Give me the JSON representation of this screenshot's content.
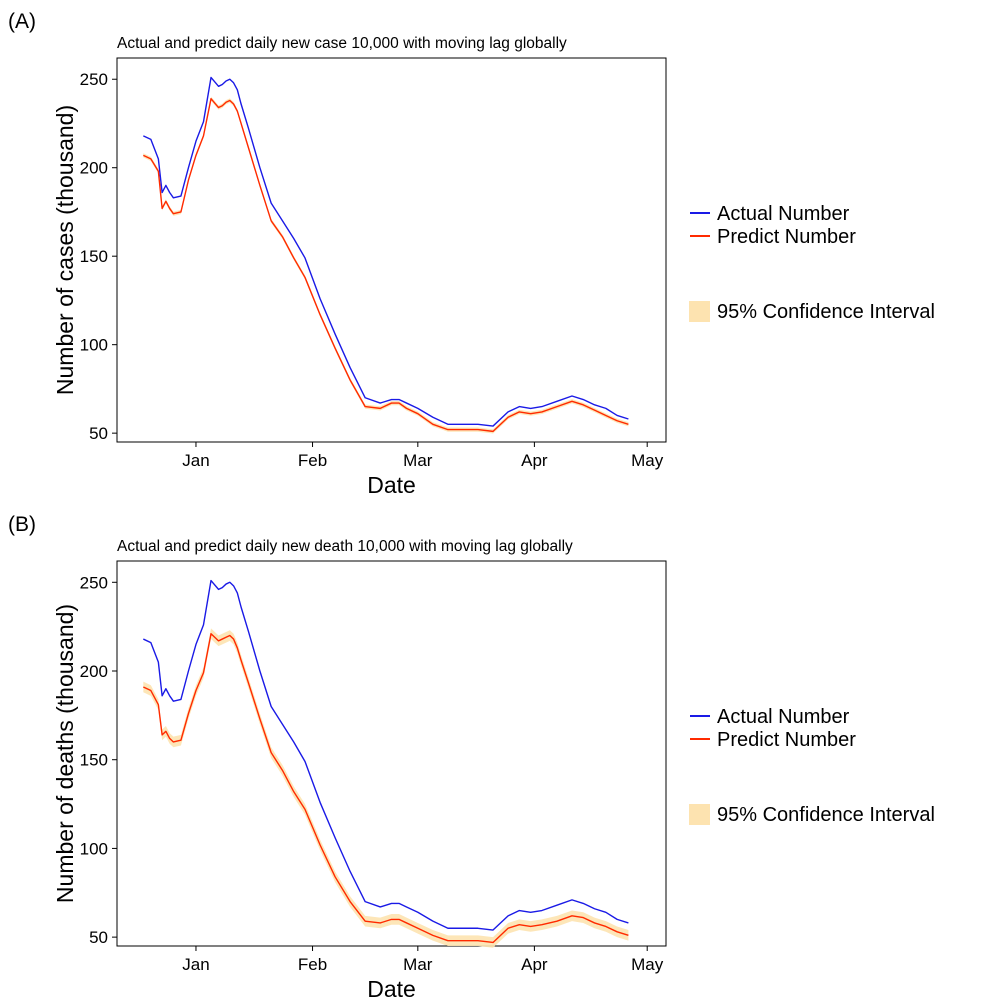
{
  "chart_data": [
    {
      "panel_label": "(A)",
      "type": "line",
      "title": "Actual and predict daily new case 10,000 with moving lag globally",
      "xlabel": "Date",
      "ylabel": "Number of cases (thousand)",
      "x_ticks": [
        "Jan",
        "Feb",
        "Mar",
        "Apr",
        "May"
      ],
      "y_ticks": [
        50,
        100,
        150,
        200,
        250
      ],
      "xlim": [
        "2020-12-11",
        "2021-05-06"
      ],
      "ylim": [
        45,
        262
      ],
      "grid": false,
      "legend": {
        "placement": "right",
        "line_entries": [
          "Actual Number",
          "Predict Number"
        ],
        "band_entry": "95% Confidence Interval"
      },
      "colors": {
        "actual": "#1a1ae6",
        "predict": "#ff2a00",
        "band": "#fde3b0"
      },
      "x": [
        "2020-12-18",
        "2020-12-20",
        "2020-12-22",
        "2020-12-23",
        "2020-12-24",
        "2020-12-25",
        "2020-12-26",
        "2020-12-28",
        "2020-12-30",
        "2021-01-01",
        "2021-01-03",
        "2021-01-05",
        "2021-01-07",
        "2021-01-08",
        "2021-01-09",
        "2021-01-10",
        "2021-01-11",
        "2021-01-12",
        "2021-01-13",
        "2021-01-15",
        "2021-01-18",
        "2021-01-21",
        "2021-01-24",
        "2021-01-27",
        "2021-01-30",
        "2021-02-03",
        "2021-02-07",
        "2021-02-11",
        "2021-02-15",
        "2021-02-19",
        "2021-02-22",
        "2021-02-24",
        "2021-02-26",
        "2021-03-01",
        "2021-03-05",
        "2021-03-09",
        "2021-03-13",
        "2021-03-17",
        "2021-03-21",
        "2021-03-25",
        "2021-03-28",
        "2021-03-31",
        "2021-04-03",
        "2021-04-07",
        "2021-04-11",
        "2021-04-14",
        "2021-04-17",
        "2021-04-20",
        "2021-04-23",
        "2021-04-26"
      ],
      "series": [
        {
          "name": "Actual Number",
          "values": [
            218,
            216,
            205,
            186,
            190,
            186,
            183,
            184,
            200,
            215,
            226,
            251,
            246,
            247,
            249,
            250,
            248,
            244,
            236,
            222,
            200,
            180,
            170,
            160,
            149,
            126,
            106,
            87,
            70,
            67,
            69,
            69,
            67,
            64,
            59,
            55,
            55,
            55,
            54,
            62,
            65,
            64,
            65,
            68,
            71,
            69,
            66,
            64,
            60,
            58
          ]
        },
        {
          "name": "Predict Number",
          "values": [
            207,
            205,
            198,
            177,
            181,
            177,
            174,
            175,
            193,
            207,
            218,
            239,
            234,
            235,
            237,
            238,
            236,
            232,
            225,
            211,
            190,
            170,
            161,
            149,
            138,
            117,
            98,
            80,
            65,
            64,
            67,
            67,
            64,
            61,
            55,
            52,
            52,
            52,
            51,
            59,
            62,
            61,
            62,
            65,
            68,
            66,
            63,
            60,
            57,
            55
          ]
        }
      ],
      "confidence_interval_width": 1.2
    },
    {
      "panel_label": "(B)",
      "type": "line",
      "title": "Actual and predict daily new death 10,000 with moving lag globally",
      "xlabel": "Date",
      "ylabel": "Number of deaths (thousand)",
      "x_ticks": [
        "Jan",
        "Feb",
        "Mar",
        "Apr",
        "May"
      ],
      "y_ticks": [
        50,
        100,
        150,
        200,
        250
      ],
      "xlim": [
        "2020-12-11",
        "2021-05-06"
      ],
      "ylim": [
        45,
        262
      ],
      "grid": false,
      "legend": {
        "placement": "right",
        "line_entries": [
          "Actual Number",
          "Predict Number"
        ],
        "band_entry": "95% Confidence Interval"
      },
      "colors": {
        "actual": "#1a1ae6",
        "predict": "#ff2a00",
        "band": "#fde3b0"
      },
      "x": [
        "2020-12-18",
        "2020-12-20",
        "2020-12-22",
        "2020-12-23",
        "2020-12-24",
        "2020-12-25",
        "2020-12-26",
        "2020-12-28",
        "2020-12-30",
        "2021-01-01",
        "2021-01-03",
        "2021-01-05",
        "2021-01-07",
        "2021-01-08",
        "2021-01-09",
        "2021-01-10",
        "2021-01-11",
        "2021-01-12",
        "2021-01-13",
        "2021-01-15",
        "2021-01-18",
        "2021-01-21",
        "2021-01-24",
        "2021-01-27",
        "2021-01-30",
        "2021-02-03",
        "2021-02-07",
        "2021-02-11",
        "2021-02-15",
        "2021-02-19",
        "2021-02-22",
        "2021-02-24",
        "2021-02-26",
        "2021-03-01",
        "2021-03-05",
        "2021-03-09",
        "2021-03-13",
        "2021-03-17",
        "2021-03-21",
        "2021-03-25",
        "2021-03-28",
        "2021-03-31",
        "2021-04-03",
        "2021-04-07",
        "2021-04-11",
        "2021-04-14",
        "2021-04-17",
        "2021-04-20",
        "2021-04-23",
        "2021-04-26"
      ],
      "series": [
        {
          "name": "Actual Number",
          "values": [
            218,
            216,
            205,
            186,
            190,
            186,
            183,
            184,
            200,
            215,
            226,
            251,
            246,
            247,
            249,
            250,
            248,
            244,
            236,
            222,
            200,
            180,
            170,
            160,
            149,
            126,
            106,
            87,
            70,
            67,
            69,
            69,
            67,
            64,
            59,
            55,
            55,
            55,
            54,
            62,
            65,
            64,
            65,
            68,
            71,
            69,
            66,
            64,
            60,
            58
          ]
        },
        {
          "name": "Predict Number",
          "values": [
            191,
            189,
            181,
            164,
            166,
            162,
            160,
            161,
            176,
            189,
            199,
            221,
            217,
            218,
            219,
            220,
            218,
            213,
            206,
            193,
            173,
            154,
            144,
            132,
            122,
            102,
            84,
            70,
            59,
            58,
            60,
            60,
            58,
            55,
            51,
            48,
            48,
            48,
            47,
            55,
            57,
            56,
            57,
            59,
            62,
            61,
            58,
            56,
            53,
            51
          ]
        }
      ],
      "confidence_interval_width": 3
    }
  ]
}
